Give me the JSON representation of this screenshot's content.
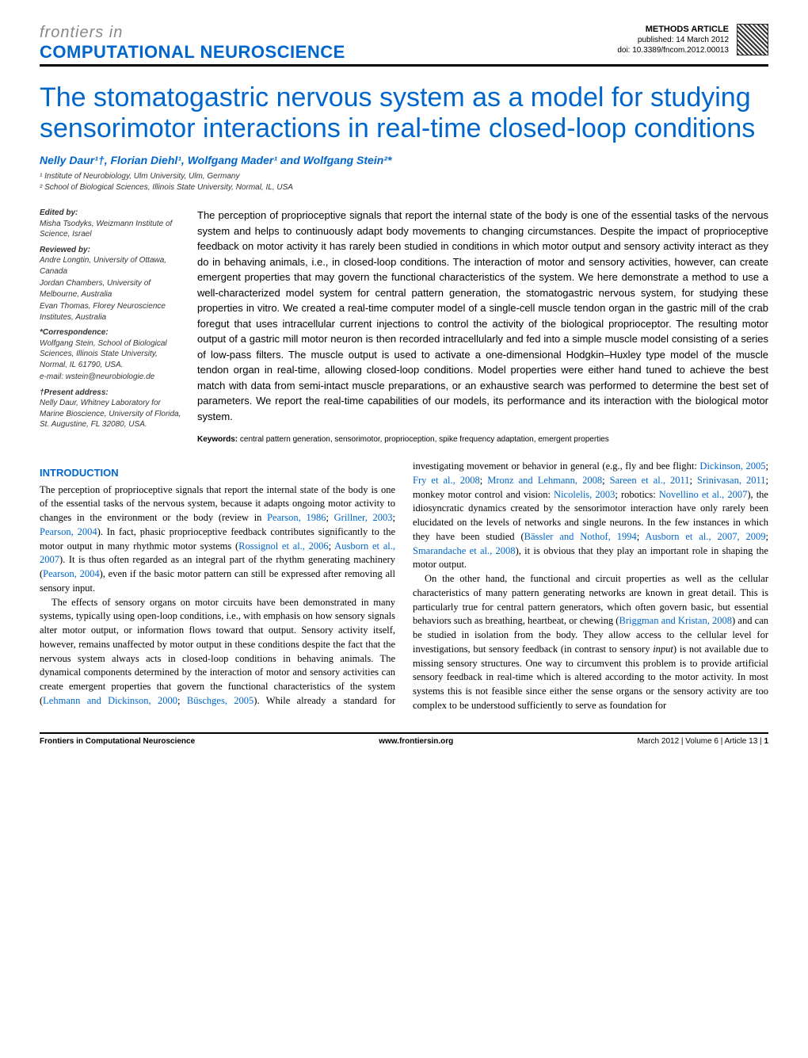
{
  "header": {
    "journal_prefix": "frontiers in",
    "journal_name": "COMPUTATIONAL NEUROSCIENCE",
    "article_type": "METHODS ARTICLE",
    "published": "published: 14 March 2012",
    "doi": "doi: 10.3389/fncom.2012.00013"
  },
  "title": "The stomatogastric nervous system as a model for studying sensorimotor interactions in real-time closed-loop conditions",
  "authors_line": "Nelly Daur¹†, Florian Diehl¹, Wolfgang Mader¹ and Wolfgang Stein²*",
  "affiliations": [
    "¹ Institute of Neurobiology, Ulm University, Ulm, Germany",
    "² School of Biological Sciences, Illinois State University, Normal, IL, USA"
  ],
  "sidebar": {
    "edited_by_label": "Edited by:",
    "edited_by": "Misha Tsodyks, Weizmann Institute of Science, Israel",
    "reviewed_by_label": "Reviewed by:",
    "reviewed_by_1": "Andre Longtin, University of Ottawa, Canada",
    "reviewed_by_2": "Jordan Chambers, University of Melbourne, Australia",
    "reviewed_by_3": "Evan Thomas, Florey Neuroscience Institutes, Australia",
    "correspondence_label": "*Correspondence:",
    "correspondence": "Wolfgang Stein, School of Biological Sciences, Illinois State University, Normal, IL 61790, USA.",
    "correspondence_email": "e-mail: wstein@neurobiologie.de",
    "present_label": "†Present address:",
    "present": "Nelly Daur, Whitney Laboratory for Marine Bioscience, University of Florida, St. Augustine, FL 32080, USA."
  },
  "abstract": "The perception of proprioceptive signals that report the internal state of the body is one of the essential tasks of the nervous system and helps to continuously adapt body movements to changing circumstances. Despite the impact of proprioceptive feedback on motor activity it has rarely been studied in conditions in which motor output and sensory activity interact as they do in behaving animals, i.e., in closed-loop conditions. The interaction of motor and sensory activities, however, can create emergent properties that may govern the functional characteristics of the system. We here demonstrate a method to use a well-characterized model system for central pattern generation, the stomatogastric nervous system, for studying these properties in vitro. We created a real-time computer model of a single-cell muscle tendon organ in the gastric mill of the crab foregut that uses intracellular current injections to control the activity of the biological proprioceptor. The resulting motor output of a gastric mill motor neuron is then recorded intracellularly and fed into a simple muscle model consisting of a series of low-pass filters. The muscle output is used to activate a one-dimensional Hodgkin–Huxley type model of the muscle tendon organ in real-time, allowing closed-loop conditions. Model properties were either hand tuned to achieve the best match with data from semi-intact muscle preparations, or an exhaustive search was performed to determine the best set of parameters. We report the real-time capabilities of our models, its performance and its interaction with the biological motor system.",
  "keywords_label": "Keywords:",
  "keywords": "central pattern generation, sensorimotor, proprioception, spike frequency adaptation, emergent properties",
  "intro_heading": "INTRODUCTION",
  "intro_p1_a": "The perception of proprioceptive signals that report the internal state of the body is one of the essential tasks of the nervous system, because it adapts ongoing motor activity to changes in the environment or the body (review in ",
  "intro_refs": {
    "pearson1986": "Pearson, 1986",
    "grillner2003": "Grillner, 2003",
    "pearson2004": "Pearson, 2004",
    "rossignol2006": "Rossignol et al., 2006",
    "ausborn2007": "Ausborn et al., 2007",
    "lehmann2000": "Lehmann and Dickinson, 2000",
    "buschges2005": "Büschges, 2005",
    "dickinson2005": "Dickinson, 2005",
    "fry2008": "Fry et al., 2008",
    "mronz2008": "Mronz and Lehmann, 2008",
    "sareen2011": "Sareen et al., 2011",
    "srinivasan2011": "Srinivasan, 2011",
    "nicolelis2003": "Nicolelis, 2003",
    "novellino2007": "Novellino et al., 2007",
    "bassler1994": "Bässler and Nothof, 1994",
    "ausborn20072009": "Ausborn et al., 2007, 2009",
    "smarandache2008": "Smarandache et al., 2008",
    "briggman2008": "Briggman and Kristan, 2008"
  },
  "intro_p1_b": "). In fact, phasic proprioceptive feedback contributes significantly to the motor output in many rhythmic motor systems (",
  "intro_p1_c": "). It is thus often regarded as an integral part of the rhythm generating machinery (",
  "intro_p1_d": "), even if the basic motor pattern can still be expressed after removing all sensory input.",
  "intro_p2_a": "The effects of sensory organs on motor circuits have been demonstrated in many systems, typically using open-loop conditions, i.e., with emphasis on how sensory signals alter motor output, or information flows toward that output. Sensory activity itself, however, remains unaffected by motor output in these conditions despite the fact that the nervous system always acts in closed-loop conditions in behaving animals. The dynamical components determined by the interaction of motor and sensory activities can create emergent properties that govern the functional characteristics of the system (",
  "intro_p2_b": "). While already a standard for investigating movement or behavior in general (e.g., fly and bee flight: ",
  "intro_p2_c": "; monkey motor control and vision: ",
  "intro_p2_d": "; robotics: ",
  "intro_p2_e": "), the idiosyncratic dynamics created by the sensorimotor interaction have only rarely been elucidated on the levels of networks and single neurons. In the few instances in which they have been studied (",
  "intro_p2_f": "), it is obvious that they play an important role in shaping the motor output.",
  "intro_p3_a": "On the other hand, the functional and circuit properties as well as the cellular characteristics of many pattern generating networks are known in great detail. This is particularly true for central pattern generators, which often govern basic, but essential behaviors such as breathing, heartbeat, or chewing (",
  "intro_p3_b": ") and can be studied in isolation from the body. They allow access to the cellular level for investigations, but sensory feedback (in contrast to sensory ",
  "intro_p3_input": "input",
  "intro_p3_c": ") is not available due to missing sensory structures. One way to circumvent this problem is to provide artificial sensory feedback in real-time which is altered according to the motor activity. In most systems this is not feasible since either the sense organs or the sensory activity are too complex to be understood sufficiently to serve as foundation for",
  "footer": {
    "left": "Frontiers in Computational Neuroscience",
    "center": "www.frontiersin.org",
    "right_text": "March 2012 | Volume 6 | Article 13 | ",
    "page": "1"
  },
  "colors": {
    "accent": "#0066cc",
    "text": "#000000",
    "muted": "#888888"
  }
}
